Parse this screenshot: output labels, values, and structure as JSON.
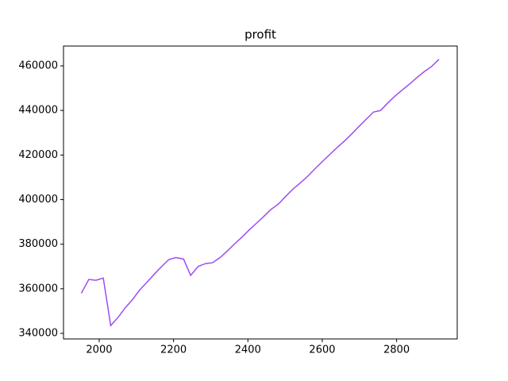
{
  "chart_data": {
    "type": "line",
    "title": "profit",
    "x": [
      1952,
      1972,
      1991,
      2011,
      2031,
      2050,
      2070,
      2089,
      2109,
      2129,
      2148,
      2168,
      2188,
      2207,
      2227,
      2246,
      2266,
      2286,
      2305,
      2325,
      2345,
      2364,
      2384,
      2403,
      2423,
      2443,
      2462,
      2482,
      2502,
      2521,
      2541,
      2561,
      2580,
      2600,
      2620,
      2639,
      2659,
      2679,
      2698,
      2718,
      2738,
      2757,
      2777,
      2796,
      2816,
      2836,
      2855,
      2875,
      2894,
      2914
    ],
    "series": [
      {
        "name": "profit",
        "color": "#9d4cf5",
        "values": [
          358000,
          364200,
          363800,
          364800,
          343500,
          347000,
          351500,
          355000,
          359500,
          363000,
          366500,
          370000,
          373200,
          374000,
          373300,
          366000,
          370000,
          371300,
          371700,
          374000,
          377000,
          380100,
          383200,
          386300,
          389400,
          392500,
          395600,
          398000,
          401500,
          404700,
          407500,
          410500,
          413800,
          417000,
          420200,
          423200,
          426200,
          429400,
          432700,
          436000,
          439300,
          440000,
          443500,
          446500,
          449300,
          452000,
          454800,
          457500,
          459700,
          462900
        ]
      }
    ],
    "xlim": [
      1904,
      2963
    ],
    "xticks": [
      2000,
      2200,
      2400,
      2600,
      2800
    ],
    "ylim": [
      337500,
      468900
    ],
    "yticks": [
      340000,
      360000,
      380000,
      400000,
      420000,
      440000,
      460000
    ],
    "grid": false
  }
}
